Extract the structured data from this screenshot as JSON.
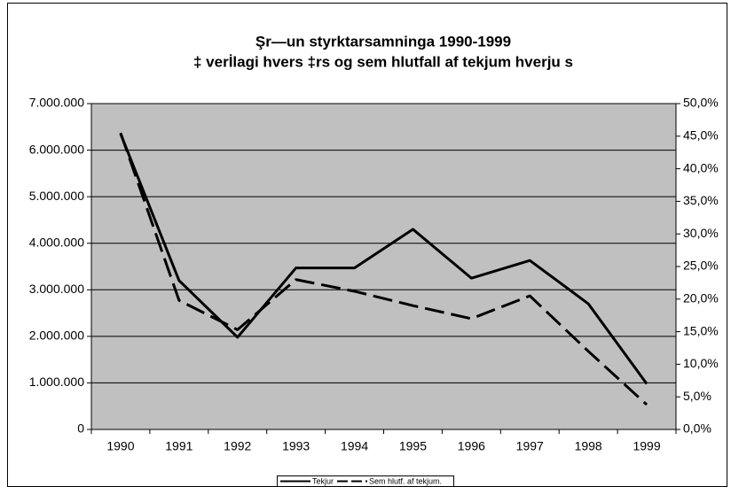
{
  "chart_data": {
    "type": "line",
    "title": [
      "Şr—un styrktarsamninga 1990-1999",
      "‡ verİlagi hvers ‡rs og sem hlutfall af tekjum hverju s"
    ],
    "categories": [
      "1990",
      "1991",
      "1992",
      "1993",
      "1994",
      "1995",
      "1996",
      "1997",
      "1998",
      "1999"
    ],
    "series": [
      {
        "name": "Tekjur",
        "color": "#000000",
        "line_style": "solid",
        "axis": "y",
        "values": [
          6350000,
          3200000,
          1980000,
          3470000,
          3470000,
          4300000,
          3250000,
          3630000,
          2700000,
          980000
        ]
      },
      {
        "name": "Sem hlutf. af tekjum.",
        "color": "#000000",
        "line_style": "dashed",
        "axis": "y2",
        "values": [
          45.5,
          19.8,
          15.3,
          23.0,
          21.2,
          19.0,
          17.0,
          20.5,
          12.0,
          3.8
        ]
      }
    ],
    "ylim": [
      0,
      7000000
    ],
    "yticks": [
      0,
      {
        "value": 1000000,
        "label": "1.000.000"
      },
      {
        "value": 2000000,
        "label": "2.000.000"
      },
      {
        "value": 3000000,
        "label": "3.000.000"
      },
      {
        "value": 4000000,
        "label": "4.000.000"
      },
      {
        "value": 5000000,
        "label": "5.000.000"
      },
      {
        "value": 6000000,
        "label": "6.000.000"
      },
      {
        "value": 7000000,
        "label": "7.000.000"
      }
    ],
    "y2lim": [
      0,
      50
    ],
    "y2ticks": [
      {
        "value": 0,
        "label": "0,0%"
      },
      {
        "value": 5,
        "label": "5,0%"
      },
      {
        "value": 10,
        "label": "10,0%"
      },
      {
        "value": 15,
        "label": "15,0%"
      },
      {
        "value": 20,
        "label": "20,0%"
      },
      {
        "value": 25,
        "label": "25,0%"
      },
      {
        "value": 30,
        "label": "30,0%"
      },
      {
        "value": 35,
        "label": "35,0%"
      },
      {
        "value": 40,
        "label": "40,0%"
      },
      {
        "value": 45,
        "label": "45,0%"
      },
      {
        "value": 50,
        "label": "50,0%"
      }
    ],
    "grid": true,
    "plot_background": "#c0c0c0",
    "legend": "bottom"
  }
}
